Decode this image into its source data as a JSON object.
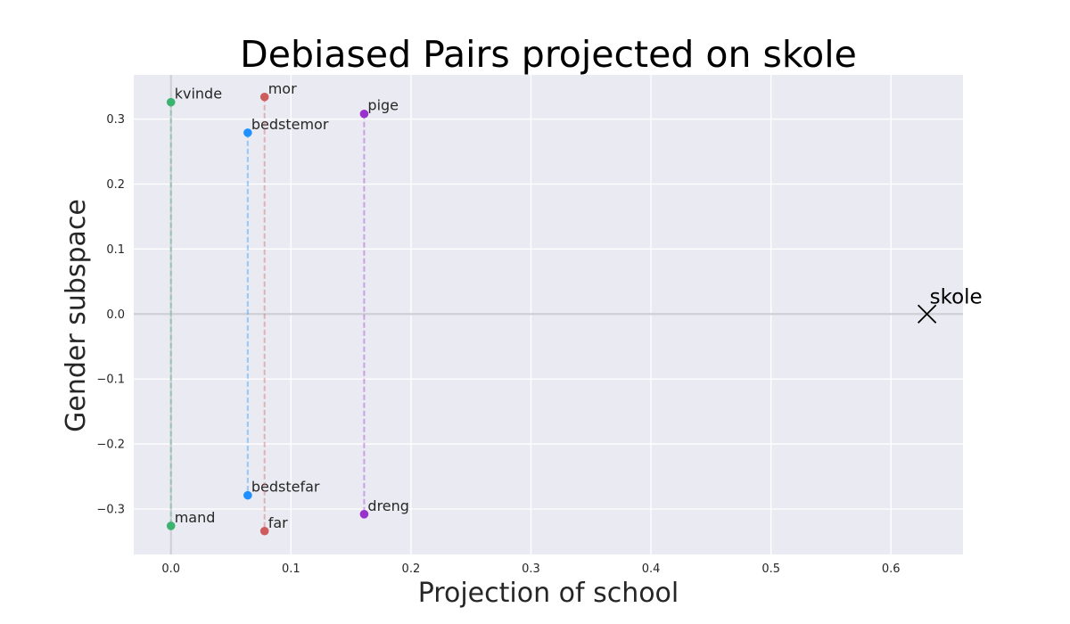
{
  "chart_data": {
    "type": "scatter",
    "title": "Debiased Pairs projected on skole",
    "xlabel": "Projection of school",
    "ylabel": "Gender subspace",
    "xlim": [
      -0.031,
      0.66
    ],
    "ylim": [
      -0.37,
      0.368
    ],
    "xticks": [
      0.0,
      0.1,
      0.2,
      0.3,
      0.4,
      0.5,
      0.6
    ],
    "xtick_labels": [
      "0.0",
      "0.1",
      "0.2",
      "0.3",
      "0.4",
      "0.5",
      "0.6"
    ],
    "yticks": [
      -0.3,
      -0.2,
      -0.1,
      0.0,
      0.1,
      0.2,
      0.3
    ],
    "ytick_labels": [
      "−0.3",
      "−0.2",
      "−0.1",
      "0.0",
      "0.1",
      "0.2",
      "0.3"
    ],
    "grid": true,
    "pairs": [
      {
        "color": "#3cb371",
        "points": [
          {
            "label": "kvinde",
            "x": 0.0,
            "y": 0.326
          },
          {
            "label": "mand",
            "x": 0.0,
            "y": -0.326
          }
        ]
      },
      {
        "color": "#1e90ff",
        "points": [
          {
            "label": "bedstemor",
            "x": 0.064,
            "y": 0.279
          },
          {
            "label": "bedstefar",
            "x": 0.064,
            "y": -0.279
          }
        ]
      },
      {
        "color": "#cd5c5c",
        "points": [
          {
            "label": "mor",
            "x": 0.078,
            "y": 0.334
          },
          {
            "label": "far",
            "x": 0.078,
            "y": -0.334
          }
        ]
      },
      {
        "color": "#9932cc",
        "points": [
          {
            "label": "pige",
            "x": 0.161,
            "y": 0.308
          },
          {
            "label": "dreng",
            "x": 0.161,
            "y": -0.308
          }
        ]
      }
    ],
    "target": {
      "label": "skole",
      "x": 0.63,
      "y": 0.0
    }
  }
}
